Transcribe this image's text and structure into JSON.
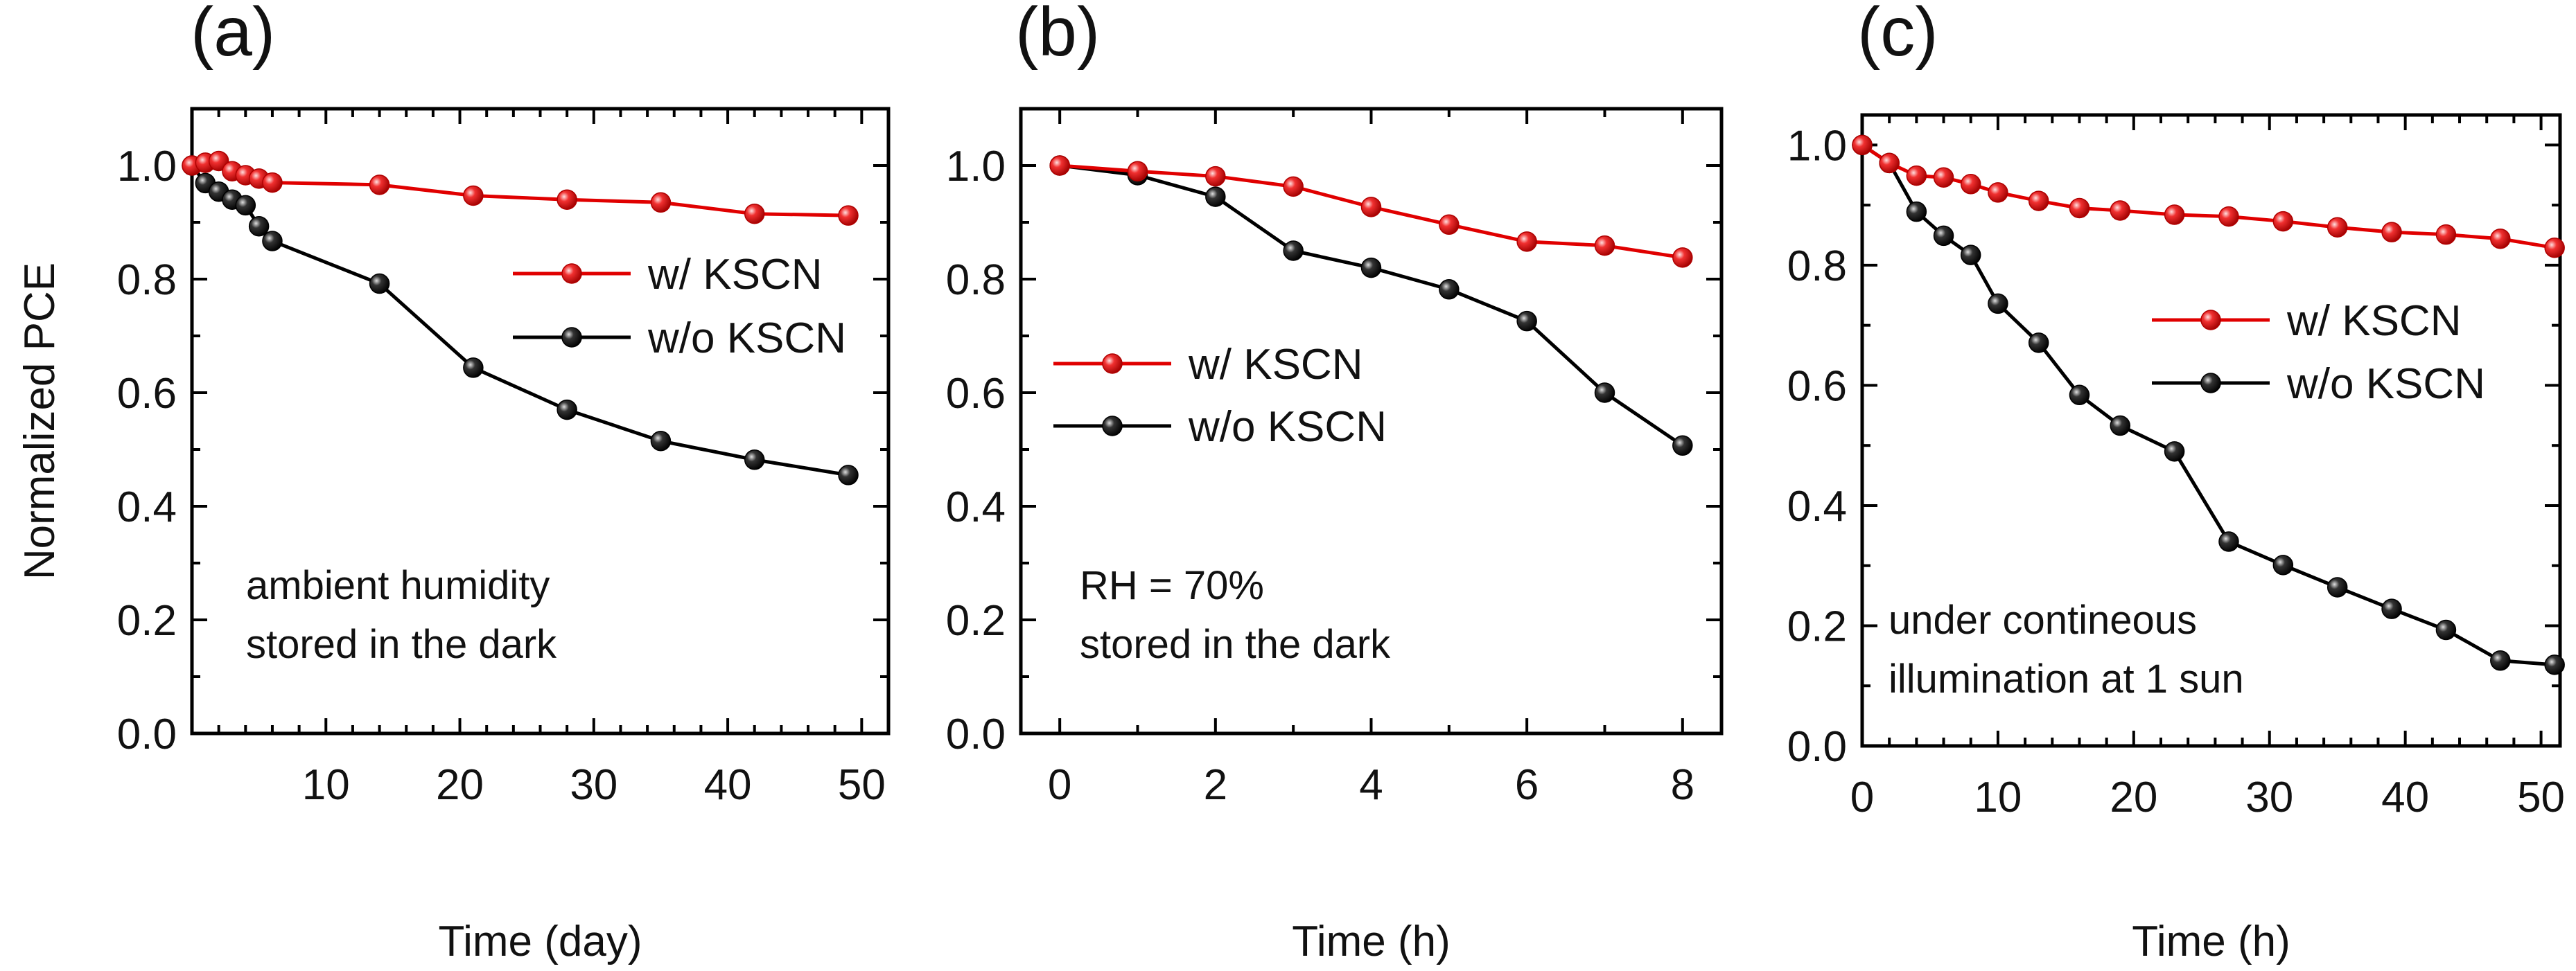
{
  "ylabel": "Normalized PCE",
  "chart_data": [
    {
      "type": "line",
      "panel_label": "(a)",
      "xlabel": "Time (day)",
      "ylabel": "Normalized PCE",
      "xlim": [
        0,
        52
      ],
      "ylim": [
        0,
        1.1
      ],
      "xticks": [
        10,
        20,
        30,
        40,
        50
      ],
      "yticks": [
        0.0,
        0.2,
        0.4,
        0.6,
        0.8,
        1.0
      ],
      "annotation": [
        "ambient humidity",
        "stored in the dark"
      ],
      "legend_position": "upper-right",
      "series": [
        {
          "name": "w/ KSCN",
          "color": "#e00000",
          "x": [
            0,
            1,
            2,
            3,
            4,
            5,
            6,
            14,
            21,
            28,
            35,
            42,
            49
          ],
          "y": [
            1.0,
            1.005,
            1.008,
            0.99,
            0.983,
            0.977,
            0.97,
            0.966,
            0.947,
            0.94,
            0.935,
            0.915,
            0.912
          ]
        },
        {
          "name": "w/o KSCN",
          "color": "#000000",
          "x": [
            0,
            1,
            2,
            3,
            4,
            5,
            6,
            14,
            21,
            28,
            35,
            42,
            49
          ],
          "y": [
            1.0,
            0.969,
            0.954,
            0.94,
            0.93,
            0.893,
            0.867,
            0.792,
            0.644,
            0.57,
            0.515,
            0.482,
            0.455
          ]
        }
      ]
    },
    {
      "type": "line",
      "panel_label": "(b)",
      "xlabel": "Time (h)",
      "ylabel": "",
      "xlim": [
        -0.5,
        8.5
      ],
      "ylim": [
        0,
        1.1
      ],
      "xticks": [
        0,
        2,
        4,
        6,
        8
      ],
      "yticks": [
        0.0,
        0.2,
        0.4,
        0.6,
        0.8,
        1.0
      ],
      "annotation": [
        "RH = 70%",
        "stored in the dark"
      ],
      "legend_position": "middle-left",
      "series": [
        {
          "name": "w/ KSCN",
          "color": "#e00000",
          "x": [
            0,
            1,
            2,
            3,
            4,
            5,
            6,
            7,
            8
          ],
          "y": [
            1.0,
            0.99,
            0.981,
            0.963,
            0.927,
            0.896,
            0.866,
            0.859,
            0.838
          ]
        },
        {
          "name": "w/o KSCN",
          "color": "#000000",
          "x": [
            0,
            1,
            2,
            3,
            4,
            5,
            6,
            7,
            8
          ],
          "y": [
            1.0,
            0.983,
            0.945,
            0.85,
            0.82,
            0.782,
            0.726,
            0.6,
            0.507
          ]
        }
      ]
    },
    {
      "type": "line",
      "panel_label": "(c)",
      "xlabel": "Time (h)",
      "ylabel": "",
      "xlim": [
        0,
        51.4
      ],
      "ylim": [
        0,
        1.05
      ],
      "xticks": [
        0,
        10,
        20,
        30,
        40,
        50
      ],
      "yticks": [
        0.0,
        0.2,
        0.4,
        0.6,
        0.8,
        1.0
      ],
      "annotation": [
        "under contineous",
        "illumination at 1 sun"
      ],
      "legend_position": "upper-right",
      "series": [
        {
          "name": "w/ KSCN",
          "color": "#e00000",
          "x": [
            0,
            2,
            4,
            6,
            8,
            10,
            13,
            16,
            19,
            23,
            27,
            31,
            35,
            39,
            43,
            47,
            51
          ],
          "y": [
            1.0,
            0.97,
            0.949,
            0.946,
            0.935,
            0.921,
            0.907,
            0.895,
            0.891,
            0.884,
            0.881,
            0.873,
            0.863,
            0.855,
            0.851,
            0.844,
            0.829
          ]
        },
        {
          "name": "w/o KSCN",
          "color": "#000000",
          "x": [
            0,
            2,
            4,
            6,
            8,
            10,
            13,
            16,
            19,
            23,
            27,
            31,
            35,
            39,
            43,
            47,
            51
          ],
          "y": [
            1.0,
            0.97,
            0.889,
            0.849,
            0.817,
            0.736,
            0.671,
            0.584,
            0.533,
            0.49,
            0.34,
            0.301,
            0.264,
            0.228,
            0.193,
            0.142,
            0.135
          ]
        }
      ]
    }
  ]
}
